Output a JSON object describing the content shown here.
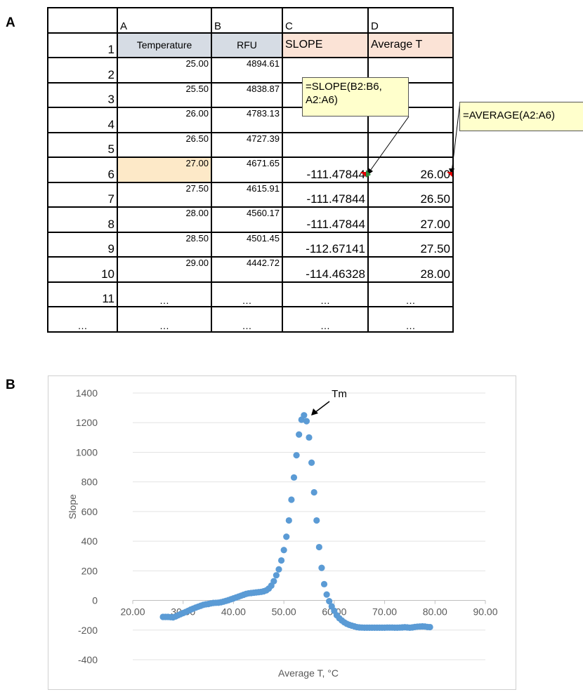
{
  "panels": {
    "a": "A",
    "b": "B"
  },
  "spreadsheet": {
    "column_headers": [
      "A",
      "B",
      "C",
      "D"
    ],
    "header_row": {
      "row": "1",
      "a": "Temperature",
      "b": "RFU",
      "c": "SLOPE",
      "d": "Average T"
    },
    "rows": [
      {
        "row": "2",
        "a": "25.00",
        "b": "4894.61",
        "c": "",
        "d": ""
      },
      {
        "row": "3",
        "a": "25.50",
        "b": "4838.87",
        "c": "",
        "d": ""
      },
      {
        "row": "4",
        "a": "26.00",
        "b": "4783.13",
        "c": "",
        "d": ""
      },
      {
        "row": "5",
        "a": "26.50",
        "b": "4727.39",
        "c": "",
        "d": ""
      },
      {
        "row": "6",
        "a": "27.00",
        "b": "4671.65",
        "c": "-111.47844",
        "d": "26.00"
      },
      {
        "row": "7",
        "a": "27.50",
        "b": "4615.91",
        "c": "-111.47844",
        "d": "26.50"
      },
      {
        "row": "8",
        "a": "28.00",
        "b": "4560.17",
        "c": "-111.47844",
        "d": "27.00"
      },
      {
        "row": "9",
        "a": "28.50",
        "b": "4501.45",
        "c": "-112.67141",
        "d": "27.50"
      },
      {
        "row": "10",
        "a": "29.00",
        "b": "4442.72",
        "c": "-114.46328",
        "d": "28.00"
      },
      {
        "row": "11",
        "a": "…",
        "b": "…",
        "c": "…",
        "d": "…"
      },
      {
        "row": "…",
        "a": "…",
        "b": "…",
        "c": "…",
        "d": "…"
      }
    ],
    "callout_slope": "=SLOPE(B2:B6, A2:A6)",
    "callout_average": "=AVERAGE(A2:A6)",
    "colors": {
      "header_blue": "#d6dce4",
      "header_peach": "#fbe3d6",
      "highlight": "#fde9c8",
      "callout_bg": "#ffffcc"
    }
  },
  "chart_data": {
    "type": "scatter",
    "xlabel": "Average T, °C",
    "ylabel": "Slope",
    "annotation": "Tm",
    "annotation_point": [
      54.5,
      1250
    ],
    "xlim": [
      20,
      90
    ],
    "ylim": [
      -400,
      1400
    ],
    "x_ticks": [
      "20.00",
      "30.00",
      "40.00",
      "50.00",
      "60.00",
      "70.00",
      "80.00",
      "90.00"
    ],
    "y_ticks": [
      "-400",
      "-200",
      "0",
      "200",
      "400",
      "600",
      "800",
      "1000",
      "1200",
      "1400"
    ],
    "grid": "horizontal",
    "marker_color": "#5b9bd5",
    "series": [
      {
        "x": [
          26.0,
          26.5,
          27.0,
          27.5,
          28.0,
          28.5,
          29.0,
          29.5,
          30.0,
          30.5,
          31.0,
          31.5,
          32.0,
          32.5,
          33.0,
          33.5,
          34.0,
          34.5,
          35.0,
          35.5,
          36.0,
          36.5,
          37.0,
          37.5,
          38.0,
          38.5,
          39.0,
          39.5,
          40.0,
          40.5,
          41.0,
          41.5,
          42.0,
          42.5,
          43.0,
          43.5,
          44.0,
          44.5,
          45.0,
          45.5,
          46.0,
          46.5,
          47.0,
          47.5,
          48.0,
          48.5,
          49.0,
          49.5,
          50.0,
          50.5,
          51.0,
          51.5,
          52.0,
          52.5,
          53.0,
          53.5,
          54.0,
          54.5,
          55.0,
          55.5,
          56.0,
          56.5,
          57.0,
          57.5,
          58.0,
          58.5,
          59.0,
          59.5,
          60.0,
          60.5,
          61.0,
          61.5,
          62.0,
          62.5,
          63.0,
          63.5,
          64.0,
          64.5,
          65.0,
          65.5,
          66.0,
          66.5,
          67.0,
          67.5,
          68.0,
          68.5,
          69.0,
          69.5,
          70.0,
          70.5,
          71.0,
          71.5,
          72.0,
          72.5,
          73.0,
          73.5,
          74.0,
          74.5,
          75.0,
          75.5,
          76.0,
          76.5,
          77.0,
          77.5,
          78.0,
          78.5,
          79.0
        ],
        "y": [
          -111,
          -111,
          -111,
          -113,
          -114,
          -108,
          -100,
          -92,
          -85,
          -78,
          -70,
          -62,
          -55,
          -48,
          -42,
          -36,
          -30,
          -26,
          -24,
          -20,
          -17,
          -16,
          -15,
          -12,
          -8,
          -3,
          2,
          8,
          14,
          20,
          26,
          32,
          38,
          44,
          48,
          50,
          52,
          54,
          56,
          58,
          62,
          68,
          80,
          100,
          130,
          170,
          210,
          270,
          340,
          430,
          540,
          680,
          830,
          980,
          1120,
          1220,
          1250,
          1210,
          1100,
          930,
          730,
          540,
          360,
          220,
          110,
          40,
          -5,
          -40,
          -70,
          -100,
          -120,
          -135,
          -148,
          -158,
          -165,
          -170,
          -175,
          -180,
          -182,
          -183,
          -184,
          -184,
          -184,
          -184,
          -184,
          -184,
          -184,
          -184,
          -184,
          -183,
          -183,
          -183,
          -184,
          -184,
          -183,
          -182,
          -181,
          -182,
          -184,
          -182,
          -179,
          -177,
          -176,
          -175,
          -176,
          -179,
          -180
        ]
      }
    ]
  }
}
